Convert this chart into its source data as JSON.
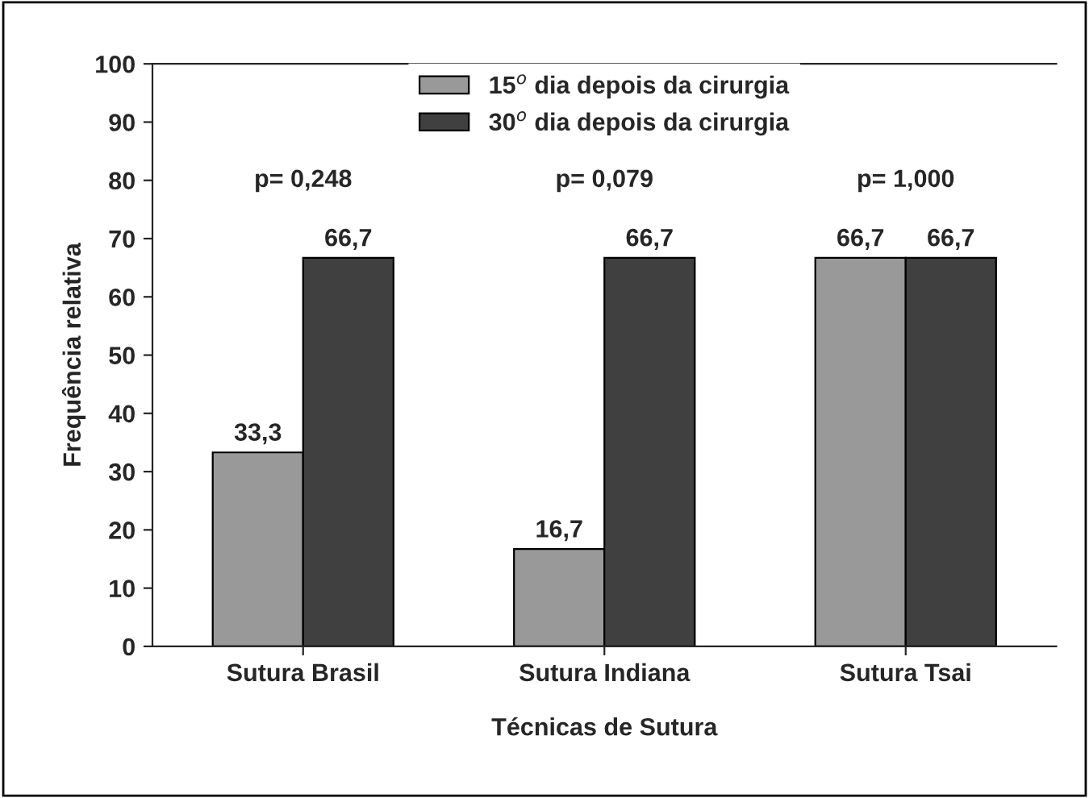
{
  "chart_data": {
    "type": "bar",
    "xlabel": "Técnicas de Sutura",
    "ylabel": "Frequência relativa",
    "categories": [
      "Sutura Brasil",
      "Sutura Indiana",
      "Sutura Tsai"
    ],
    "series": [
      {
        "name": "15$^{o}$ dia depois da cirurgia",
        "color": "#999999",
        "values": [
          33.3,
          16.7,
          66.7
        ],
        "value_labels": [
          "33,3",
          "16,7",
          "66,7"
        ]
      },
      {
        "name": "30$^{o}$ dia depois da cirurgia",
        "color": "#404040",
        "values": [
          66.7,
          66.7,
          66.7
        ],
        "value_labels": [
          "66,7",
          "66,7",
          "66,7"
        ]
      }
    ],
    "ylim": [
      0,
      100
    ],
    "yticks": [
      0,
      10,
      20,
      30,
      40,
      50,
      60,
      70,
      80,
      90,
      100
    ],
    "annotations": [
      "p= 0,248",
      "p= 0,079",
      "p= 1,000"
    ],
    "legend": "top",
    "grid": false
  }
}
